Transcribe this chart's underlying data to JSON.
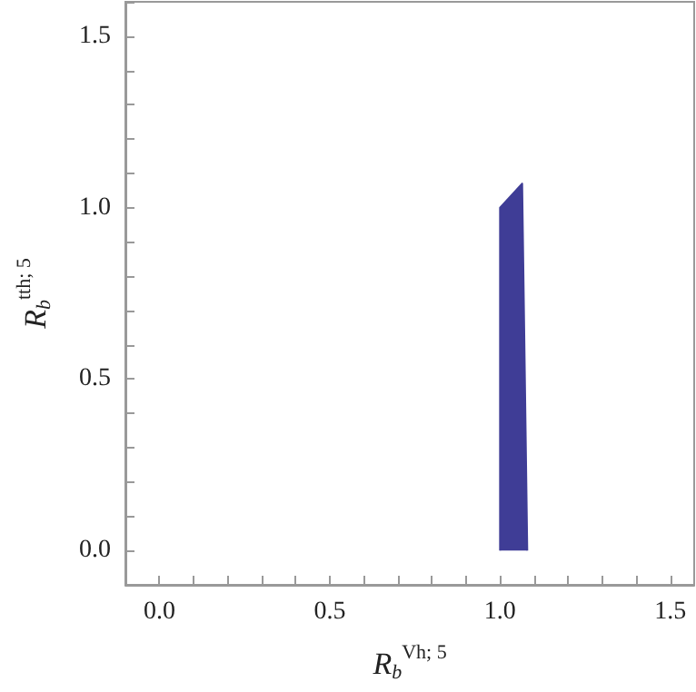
{
  "chart_data": {
    "type": "area",
    "xlabel": "R$_{b}$$^{Vh; 5}$",
    "ylabel": "R$_{b}$$^{tth; 5}$",
    "series": [
      {
        "color": "#3f3d96",
        "x": [
          1.0,
          1.0,
          1.065,
          1.08
        ],
        "values": [
          0,
          1.0,
          1.07,
          0
        ]
      }
    ],
    "xlim": [
      -0.1,
      1.57
    ],
    "ylim": [
      -0.1,
      1.6
    ],
    "xticks": [
      {
        "value": -0.1,
        "label": null
      },
      {
        "value": 0,
        "label": "0.0"
      },
      {
        "value": 0.1,
        "label": null
      },
      {
        "value": 0.2,
        "label": null
      },
      {
        "value": 0.3,
        "label": null
      },
      {
        "value": 0.4,
        "label": null
      },
      {
        "value": 0.5,
        "label": "0.5"
      },
      {
        "value": 0.6,
        "label": null
      },
      {
        "value": 0.7,
        "label": null
      },
      {
        "value": 0.8,
        "label": null
      },
      {
        "value": 0.9,
        "label": null
      },
      {
        "value": 1.0,
        "label": "1.0"
      },
      {
        "value": 1.1,
        "label": null
      },
      {
        "value": 1.2,
        "label": null
      },
      {
        "value": 1.3,
        "label": null
      },
      {
        "value": 1.4,
        "label": null
      },
      {
        "value": 1.5,
        "label": "1.5"
      }
    ],
    "yticks": [
      {
        "value": -0.1,
        "label": null
      },
      {
        "value": 0,
        "label": "0.0"
      },
      {
        "value": 0.1,
        "label": null
      },
      {
        "value": 0.2,
        "label": null
      },
      {
        "value": 0.3,
        "label": null
      },
      {
        "value": 0.4,
        "label": null
      },
      {
        "value": 0.5,
        "label": "0.5"
      },
      {
        "value": 0.6,
        "label": null
      },
      {
        "value": 0.7,
        "label": null
      },
      {
        "value": 0.8,
        "label": null
      },
      {
        "value": 0.9,
        "label": null
      },
      {
        "value": 1.0,
        "label": "1.0"
      },
      {
        "value": 1.1,
        "label": null
      },
      {
        "value": 1.2,
        "label": null
      },
      {
        "value": 1.3,
        "label": null
      },
      {
        "value": 1.4,
        "label": null
      },
      {
        "value": 1.5,
        "label": "1.5"
      },
      {
        "value": 1.6,
        "label": null
      }
    ],
    "grid": false
  }
}
